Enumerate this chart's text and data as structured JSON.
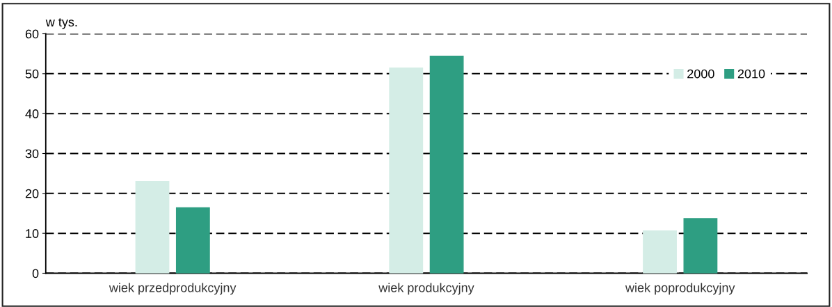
{
  "chart_data": {
    "type": "bar",
    "ylabel": "w tys.",
    "categories": [
      "wiek przedprodukcyjny",
      "wiek produkcyjny",
      "wiek poprodukcyjny"
    ],
    "series": [
      {
        "name": "2000",
        "color": "#d4ede6",
        "values": [
          23,
          51.4,
          10.6
        ]
      },
      {
        "name": "2010",
        "color": "#2e9e82",
        "values": [
          16.4,
          54.4,
          13.7
        ]
      }
    ],
    "ylim": [
      0,
      60
    ],
    "yticks": [
      0,
      10,
      20,
      30,
      40,
      50,
      60
    ],
    "grid": "y",
    "legend": "top right"
  }
}
